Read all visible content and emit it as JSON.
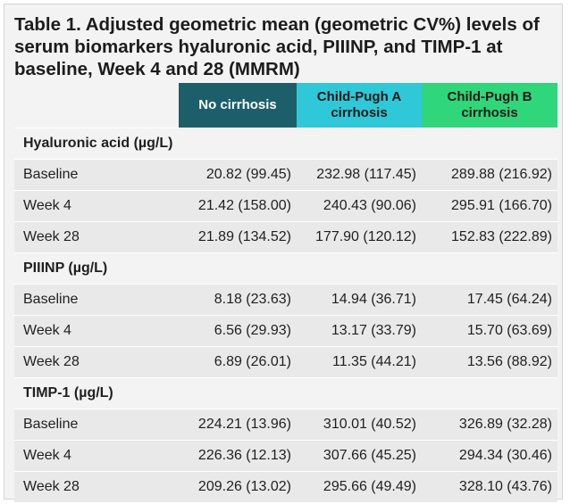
{
  "title": "Table 1. Adjusted geometric mean (geometric CV%) levels of serum biomarkers hyaluronic acid, PIIINP, and TIMP-1 at baseline, Week 4 and 28 (MMRM)",
  "columns": [
    "No cirrhosis",
    "Child-Pugh A cirrhosis",
    "Child-Pugh B cirrhosis"
  ],
  "colors": {
    "no_cirrhosis": "#1c5f6b",
    "child_pugh_a": "#2ec8d8",
    "child_pugh_b": "#2fd67a"
  },
  "sections": [
    {
      "name": "Hyaluronic acid (µg/L)",
      "rows": [
        {
          "label": "Baseline",
          "values": [
            "20.82 (99.45)",
            "232.98 (117.45)",
            "289.88 (216.92)"
          ]
        },
        {
          "label": "Week 4",
          "values": [
            "21.42 (158.00)",
            "240.43 (90.06)",
            "295.91 (166.70)"
          ]
        },
        {
          "label": "Week 28",
          "values": [
            "21.89 (134.52)",
            "177.90 (120.12)",
            "152.83 (222.89)"
          ]
        }
      ]
    },
    {
      "name": "PIIINP (µg/L)",
      "rows": [
        {
          "label": "Baseline",
          "values": [
            "8.18 (23.63)",
            "14.94 (36.71)",
            "17.45 (64.24)"
          ]
        },
        {
          "label": "Week 4",
          "values": [
            "6.56 (29.93)",
            "13.17 (33.79)",
            "15.70 (63.69)"
          ]
        },
        {
          "label": "Week 28",
          "values": [
            "6.89 (26.01)",
            "11.35 (44.21)",
            "13.56 (88.92)"
          ]
        }
      ]
    },
    {
      "name": "TIMP-1 (µg/L)",
      "rows": [
        {
          "label": "Baseline",
          "values": [
            "224.21 (13.96)",
            "310.01 (40.52)",
            "326.89 (32.28)"
          ]
        },
        {
          "label": "Week 4",
          "values": [
            "226.36 (12.13)",
            "307.66 (45.25)",
            "294.34 (30.46)"
          ]
        },
        {
          "label": "Week 28",
          "values": [
            "209.26 (13.02)",
            "295.66 (49.49)",
            "328.10 (43.76)"
          ]
        }
      ]
    }
  ]
}
